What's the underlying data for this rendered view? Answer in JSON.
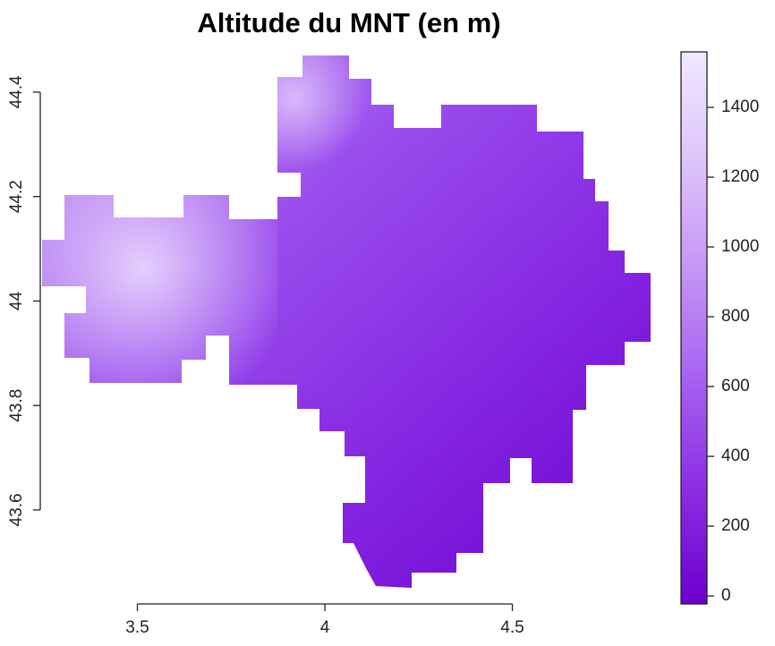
{
  "chart_data": {
    "type": "raster",
    "title": "Altitude du MNT (en m)",
    "xlim": [
      3.241,
      4.883
    ],
    "ylim": [
      43.42,
      44.477
    ],
    "xticks": [
      3.5,
      4,
      4.5
    ],
    "yticks": [
      43.6,
      43.8,
      44,
      44.2,
      44.4
    ],
    "colorbar": {
      "zlim": [
        -23,
        1559
      ],
      "ticks": [
        0,
        200,
        400,
        600,
        800,
        1000,
        1200,
        1400
      ],
      "colors": [
        "#6d00cf",
        "#8a2be2",
        "#a55ff0",
        "#c493f7",
        "#ddc3fb",
        "#f1e8ff"
      ]
    }
  }
}
